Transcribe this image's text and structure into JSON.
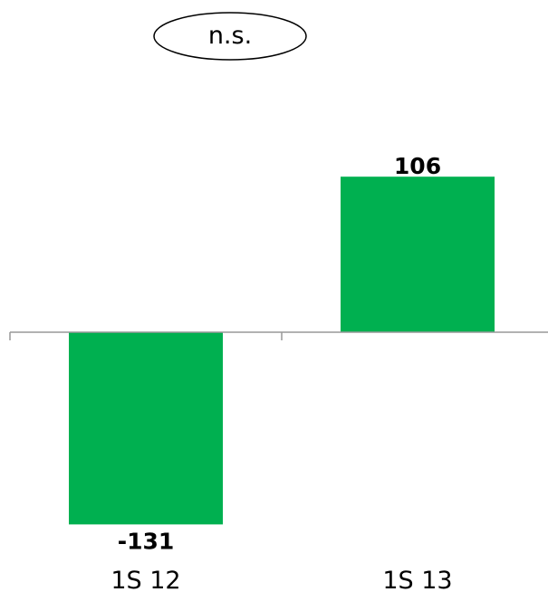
{
  "chart_data": {
    "type": "bar",
    "categories": [
      "1S 12",
      "1S 13"
    ],
    "values": [
      -131,
      106
    ],
    "value_labels": [
      "-131",
      "106"
    ],
    "annotation": "n.s.",
    "bar_color": "#00b050",
    "axis_color": "#999999",
    "ylim": [
      -131,
      106
    ]
  }
}
